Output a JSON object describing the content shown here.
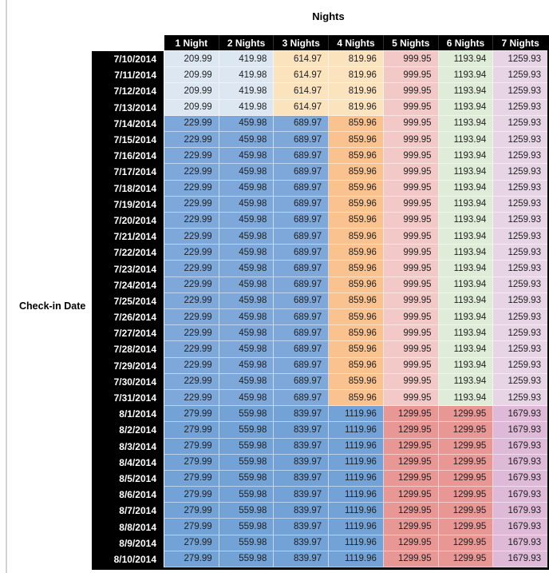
{
  "chart_data": {
    "type": "table",
    "title": "Nights",
    "row_axis_label": "Check-in Date",
    "columns": [
      "1 Night",
      "2 Nights",
      "3 Nights",
      "4 Nights",
      "5 Nights",
      "6 Nights",
      "7 Nights"
    ],
    "palette": {
      "light_blue": "#DCE7F2",
      "light_orange": "#FBE3BE",
      "light_red": "#F2C9C7",
      "light_green": "#DFEDD8",
      "light_purple": "#E7D5E6",
      "med_blue": "#7EA8DA",
      "med_orange": "#FAC28E",
      "aug_blue": "#72A2D6",
      "aug_red": "#E99794",
      "aug_purple": "#DEB9D8"
    },
    "bands": {
      "early": [
        "light_blue",
        "light_blue",
        "light_orange",
        "light_orange",
        "light_red",
        "light_green",
        "light_purple"
      ],
      "mid": [
        "med_blue",
        "med_blue",
        "med_blue",
        "med_orange",
        "light_red",
        "light_green",
        "light_purple"
      ],
      "aug": [
        "aug_blue",
        "aug_blue",
        "aug_blue",
        "aug_blue",
        "aug_red",
        "aug_red",
        "aug_purple"
      ]
    },
    "rows": [
      {
        "date": "7/10/2014",
        "band": "early",
        "values": [
          209.99,
          419.98,
          614.97,
          819.96,
          999.95,
          1193.94,
          1259.93
        ]
      },
      {
        "date": "7/11/2014",
        "band": "early",
        "values": [
          209.99,
          419.98,
          614.97,
          819.96,
          999.95,
          1193.94,
          1259.93
        ]
      },
      {
        "date": "7/12/2014",
        "band": "early",
        "values": [
          209.99,
          419.98,
          614.97,
          819.96,
          999.95,
          1193.94,
          1259.93
        ]
      },
      {
        "date": "7/13/2014",
        "band": "early",
        "values": [
          209.99,
          419.98,
          614.97,
          819.96,
          999.95,
          1193.94,
          1259.93
        ]
      },
      {
        "date": "7/14/2014",
        "band": "mid",
        "values": [
          229.99,
          459.98,
          689.97,
          859.96,
          999.95,
          1193.94,
          1259.93
        ]
      },
      {
        "date": "7/15/2014",
        "band": "mid",
        "values": [
          229.99,
          459.98,
          689.97,
          859.96,
          999.95,
          1193.94,
          1259.93
        ]
      },
      {
        "date": "7/16/2014",
        "band": "mid",
        "values": [
          229.99,
          459.98,
          689.97,
          859.96,
          999.95,
          1193.94,
          1259.93
        ]
      },
      {
        "date": "7/17/2014",
        "band": "mid",
        "values": [
          229.99,
          459.98,
          689.97,
          859.96,
          999.95,
          1193.94,
          1259.93
        ]
      },
      {
        "date": "7/18/2014",
        "band": "mid",
        "values": [
          229.99,
          459.98,
          689.97,
          859.96,
          999.95,
          1193.94,
          1259.93
        ]
      },
      {
        "date": "7/19/2014",
        "band": "mid",
        "values": [
          229.99,
          459.98,
          689.97,
          859.96,
          999.95,
          1193.94,
          1259.93
        ]
      },
      {
        "date": "7/20/2014",
        "band": "mid",
        "values": [
          229.99,
          459.98,
          689.97,
          859.96,
          999.95,
          1193.94,
          1259.93
        ]
      },
      {
        "date": "7/21/2014",
        "band": "mid",
        "values": [
          229.99,
          459.98,
          689.97,
          859.96,
          999.95,
          1193.94,
          1259.93
        ]
      },
      {
        "date": "7/22/2014",
        "band": "mid",
        "values": [
          229.99,
          459.98,
          689.97,
          859.96,
          999.95,
          1193.94,
          1259.93
        ]
      },
      {
        "date": "7/23/2014",
        "band": "mid",
        "values": [
          229.99,
          459.98,
          689.97,
          859.96,
          999.95,
          1193.94,
          1259.93
        ]
      },
      {
        "date": "7/24/2014",
        "band": "mid",
        "values": [
          229.99,
          459.98,
          689.97,
          859.96,
          999.95,
          1193.94,
          1259.93
        ]
      },
      {
        "date": "7/25/2014",
        "band": "mid",
        "values": [
          229.99,
          459.98,
          689.97,
          859.96,
          999.95,
          1193.94,
          1259.93
        ]
      },
      {
        "date": "7/26/2014",
        "band": "mid",
        "values": [
          229.99,
          459.98,
          689.97,
          859.96,
          999.95,
          1193.94,
          1259.93
        ]
      },
      {
        "date": "7/27/2014",
        "band": "mid",
        "values": [
          229.99,
          459.98,
          689.97,
          859.96,
          999.95,
          1193.94,
          1259.93
        ]
      },
      {
        "date": "7/28/2014",
        "band": "mid",
        "values": [
          229.99,
          459.98,
          689.97,
          859.96,
          999.95,
          1193.94,
          1259.93
        ]
      },
      {
        "date": "7/29/2014",
        "band": "mid",
        "values": [
          229.99,
          459.98,
          689.97,
          859.96,
          999.95,
          1193.94,
          1259.93
        ]
      },
      {
        "date": "7/30/2014",
        "band": "mid",
        "values": [
          229.99,
          459.98,
          689.97,
          859.96,
          999.95,
          1193.94,
          1259.93
        ]
      },
      {
        "date": "7/31/2014",
        "band": "mid",
        "values": [
          229.99,
          459.98,
          689.97,
          859.96,
          999.95,
          1193.94,
          1259.93
        ]
      },
      {
        "date": "8/1/2014",
        "band": "aug",
        "values": [
          279.99,
          559.98,
          839.97,
          1119.96,
          1299.95,
          1299.95,
          1679.93
        ]
      },
      {
        "date": "8/2/2014",
        "band": "aug",
        "values": [
          279.99,
          559.98,
          839.97,
          1119.96,
          1299.95,
          1299.95,
          1679.93
        ]
      },
      {
        "date": "8/3/2014",
        "band": "aug",
        "values": [
          279.99,
          559.98,
          839.97,
          1119.96,
          1299.95,
          1299.95,
          1679.93
        ]
      },
      {
        "date": "8/4/2014",
        "band": "aug",
        "values": [
          279.99,
          559.98,
          839.97,
          1119.96,
          1299.95,
          1299.95,
          1679.93
        ]
      },
      {
        "date": "8/5/2014",
        "band": "aug",
        "values": [
          279.99,
          559.98,
          839.97,
          1119.96,
          1299.95,
          1299.95,
          1679.93
        ]
      },
      {
        "date": "8/6/2014",
        "band": "aug",
        "values": [
          279.99,
          559.98,
          839.97,
          1119.96,
          1299.95,
          1299.95,
          1679.93
        ]
      },
      {
        "date": "8/7/2014",
        "band": "aug",
        "values": [
          279.99,
          559.98,
          839.97,
          1119.96,
          1299.95,
          1299.95,
          1679.93
        ]
      },
      {
        "date": "8/8/2014",
        "band": "aug",
        "values": [
          279.99,
          559.98,
          839.97,
          1119.96,
          1299.95,
          1299.95,
          1679.93
        ]
      },
      {
        "date": "8/9/2014",
        "band": "aug",
        "values": [
          279.99,
          559.98,
          839.97,
          1119.96,
          1299.95,
          1299.95,
          1679.93
        ]
      },
      {
        "date": "8/10/2014",
        "band": "aug",
        "values": [
          279.99,
          559.98,
          839.97,
          1119.96,
          1299.95,
          1299.95,
          1679.93
        ]
      }
    ]
  }
}
